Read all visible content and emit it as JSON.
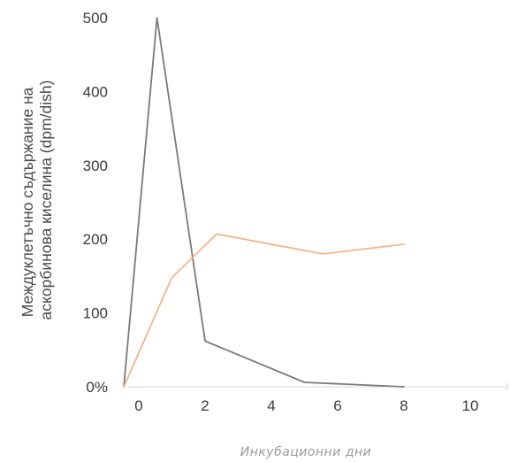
{
  "chart_data": {
    "type": "line",
    "xlabel": "Инкубационни дни",
    "ylabel": [
      "Междуклетъчно съдържание на",
      "аскорбинова киселина (dpm/dish)"
    ],
    "x_ticks": [
      "0",
      "2",
      "4",
      "6",
      "8",
      "10"
    ],
    "y_ticks": [
      "0%",
      "100",
      "200",
      "300",
      "400",
      "500"
    ],
    "xlim": [
      -0.5,
      10
    ],
    "ylim": [
      0,
      500
    ],
    "grid": false,
    "legend": "none",
    "series": [
      {
        "color": "#7a7a7a",
        "x": [
          -0.45,
          0.55,
          2.0,
          5.0,
          8.0
        ],
        "y": [
          0,
          500,
          62,
          6,
          0
        ]
      },
      {
        "color": "#f4b48c",
        "x": [
          -0.45,
          1.0,
          2.35,
          5.55,
          8.0
        ],
        "y": [
          0,
          148,
          207,
          180,
          193
        ]
      }
    ]
  }
}
